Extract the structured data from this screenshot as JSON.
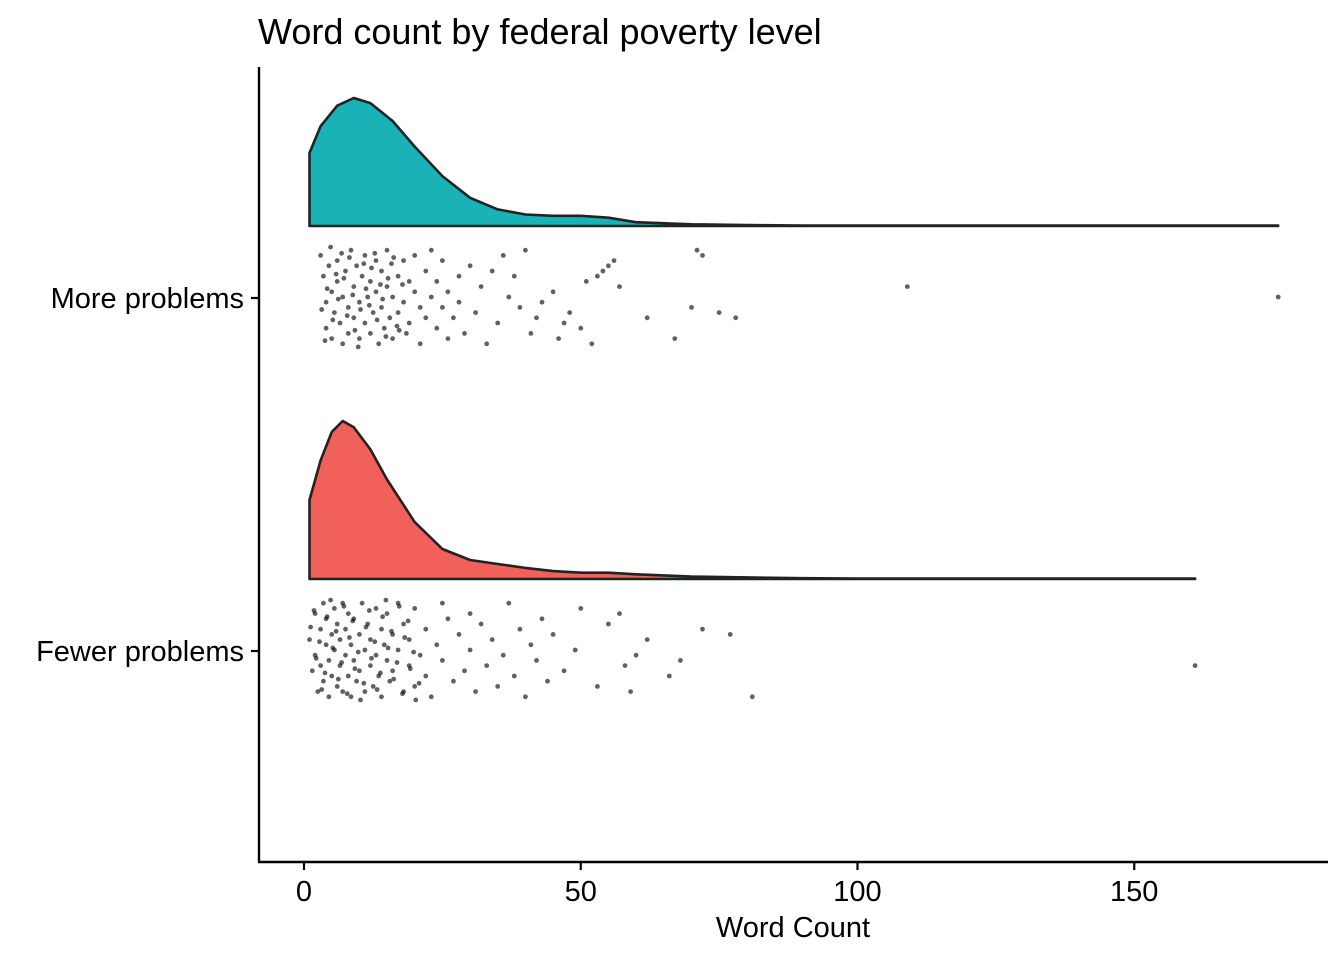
{
  "chart_data": {
    "type": "raincloud",
    "title": "Word count by federal poverty level",
    "xlabel": "Word Count",
    "ylabel": "",
    "xlim": [
      -8,
      184
    ],
    "x_ticks": [
      0,
      50,
      100,
      150
    ],
    "grid": false,
    "legend": "none",
    "categories": [
      "Fewer problems",
      "More problems"
    ],
    "series": [
      {
        "category": "More problems",
        "color": "#19B3B7",
        "density_x": [
          1,
          3,
          6,
          9,
          12,
          16,
          20,
          25,
          30,
          35,
          40,
          45,
          50,
          55,
          60,
          70,
          80,
          90,
          100,
          120,
          140,
          160,
          176
        ],
        "density_y": [
          0.57,
          0.78,
          0.94,
          1.0,
          0.96,
          0.82,
          0.62,
          0.39,
          0.22,
          0.13,
          0.09,
          0.08,
          0.08,
          0.065,
          0.03,
          0.013,
          0.007,
          0.004,
          0.003,
          0.003,
          0.003,
          0.003,
          0.003
        ],
        "max_x": 176,
        "points": [
          [
            3,
            0.1
          ],
          [
            3.5,
            0.3
          ],
          [
            4,
            0.55
          ],
          [
            4,
            0.8
          ],
          [
            4.5,
            0.2
          ],
          [
            5,
            0.45
          ],
          [
            5,
            0.9
          ],
          [
            5.5,
            0.65
          ],
          [
            6,
            0.15
          ],
          [
            6,
            0.35
          ],
          [
            6.5,
            0.75
          ],
          [
            7,
            0.5
          ],
          [
            7,
            0.95
          ],
          [
            7.5,
            0.25
          ],
          [
            8,
            0.6
          ],
          [
            8,
            0.85
          ],
          [
            8.5,
            0.05
          ],
          [
            9,
            0.4
          ],
          [
            9,
            0.7
          ],
          [
            9.5,
            0.2
          ],
          [
            10,
            0.55
          ],
          [
            10,
            0.9
          ],
          [
            10.5,
            0.3
          ],
          [
            11,
            0.75
          ],
          [
            11,
            0.1
          ],
          [
            11.5,
            0.5
          ],
          [
            12,
            0.85
          ],
          [
            12,
            0.35
          ],
          [
            12.5,
            0.65
          ],
          [
            13,
            0.15
          ],
          [
            13,
            0.45
          ],
          [
            13.5,
            0.95
          ],
          [
            14,
            0.6
          ],
          [
            14,
            0.25
          ],
          [
            14.5,
            0.8
          ],
          [
            15,
            0.4
          ],
          [
            15,
            0.05
          ],
          [
            15.5,
            0.7
          ],
          [
            16,
            0.5
          ],
          [
            16,
            0.9
          ],
          [
            17,
            0.3
          ],
          [
            17,
            0.65
          ],
          [
            18,
            0.15
          ],
          [
            18,
            0.55
          ],
          [
            18.5,
            0.85
          ],
          [
            19,
            0.35
          ],
          [
            19,
            0.75
          ],
          [
            20,
            0.45
          ],
          [
            20,
            0.1
          ],
          [
            21,
            0.6
          ],
          [
            21,
            0.95
          ],
          [
            22,
            0.25
          ],
          [
            22,
            0.7
          ],
          [
            23,
            0.5
          ],
          [
            23,
            0.05
          ],
          [
            24,
            0.8
          ],
          [
            24,
            0.35
          ],
          [
            25,
            0.6
          ],
          [
            25,
            0.15
          ],
          [
            26,
            0.45
          ],
          [
            26,
            0.9
          ],
          [
            27,
            0.7
          ],
          [
            28,
            0.3
          ],
          [
            28,
            0.55
          ],
          [
            29,
            0.85
          ],
          [
            30,
            0.2
          ],
          [
            31,
            0.65
          ],
          [
            32,
            0.4
          ],
          [
            33,
            0.95
          ],
          [
            34,
            0.25
          ],
          [
            35,
            0.75
          ],
          [
            36,
            0.1
          ],
          [
            37,
            0.5
          ],
          [
            38,
            0.3
          ],
          [
            39,
            0.6
          ],
          [
            40,
            0.05
          ],
          [
            41,
            0.85
          ],
          [
            42,
            0.7
          ],
          [
            43,
            0.55
          ],
          [
            45,
            0.45
          ],
          [
            46,
            0.9
          ],
          [
            47,
            0.75
          ],
          [
            48,
            0.65
          ],
          [
            50,
            0.8
          ],
          [
            51,
            0.35
          ],
          [
            52,
            0.95
          ],
          [
            53,
            0.3
          ],
          [
            54,
            0.25
          ],
          [
            55,
            0.2
          ],
          [
            56,
            0.15
          ],
          [
            57,
            0.4
          ],
          [
            62,
            0.7
          ],
          [
            67,
            0.9
          ],
          [
            70,
            0.6
          ],
          [
            71,
            0.05
          ],
          [
            72,
            0.1
          ],
          [
            75,
            0.65
          ],
          [
            78,
            0.7
          ],
          [
            109,
            0.4
          ],
          [
            176,
            0.5
          ],
          [
            3.2,
            0.62
          ],
          [
            4.2,
            0.42
          ],
          [
            5.2,
            0.72
          ],
          [
            6.2,
            0.52
          ],
          [
            7.2,
            0.32
          ],
          [
            8.2,
            0.12
          ],
          [
            9.2,
            0.82
          ],
          [
            10.2,
            0.62
          ],
          [
            11.2,
            0.42
          ],
          [
            12.2,
            0.22
          ],
          [
            13.2,
            0.72
          ],
          [
            14.2,
            0.52
          ],
          [
            15.2,
            0.32
          ],
          [
            16.2,
            0.12
          ],
          [
            17.2,
            0.82
          ],
          [
            3.8,
            0.92
          ],
          [
            4.8,
            0.02
          ],
          [
            5.8,
            0.28
          ],
          [
            6.8,
            0.08
          ],
          [
            7.8,
            0.68
          ],
          [
            8.8,
            0.48
          ],
          [
            9.8,
            0.98
          ],
          [
            10.8,
            0.18
          ],
          [
            11.8,
            0.58
          ],
          [
            12.8,
            0.08
          ],
          [
            13.8,
            0.38
          ],
          [
            14.8,
            0.88
          ],
          [
            15.8,
            0.18
          ],
          [
            16.8,
            0.78
          ],
          [
            17.8,
            0.38
          ]
        ]
      },
      {
        "category": "Fewer problems",
        "color": "#F2605B",
        "density_x": [
          1,
          3,
          5,
          7,
          9,
          12,
          15,
          20,
          25,
          30,
          35,
          40,
          45,
          50,
          55,
          60,
          70,
          80,
          90,
          100,
          120,
          140,
          161
        ],
        "density_y": [
          0.5,
          0.75,
          0.93,
          1.0,
          0.96,
          0.82,
          0.63,
          0.36,
          0.19,
          0.12,
          0.095,
          0.07,
          0.05,
          0.04,
          0.04,
          0.03,
          0.015,
          0.01,
          0.005,
          0.003,
          0.003,
          0.003,
          0.003
        ],
        "max_x": 161,
        "points": [
          [
            1,
            0.4
          ],
          [
            1.5,
            0.7
          ],
          [
            2,
            0.15
          ],
          [
            2,
            0.55
          ],
          [
            2.5,
            0.9
          ],
          [
            3,
            0.3
          ],
          [
            3,
            0.65
          ],
          [
            3.5,
            0.05
          ],
          [
            3.5,
            0.8
          ],
          [
            4,
            0.45
          ],
          [
            4,
            0.2
          ],
          [
            4.5,
            0.6
          ],
          [
            4.5,
            0.95
          ],
          [
            5,
            0.35
          ],
          [
            5,
            0.75
          ],
          [
            5.5,
            0.1
          ],
          [
            5.5,
            0.5
          ],
          [
            6,
            0.85
          ],
          [
            6,
            0.25
          ],
          [
            6.5,
            0.65
          ],
          [
            6.5,
            0.4
          ],
          [
            7,
            0.05
          ],
          [
            7,
            0.9
          ],
          [
            7.5,
            0.55
          ],
          [
            7.5,
            0.3
          ],
          [
            8,
            0.75
          ],
          [
            8,
            0.15
          ],
          [
            8.5,
            0.45
          ],
          [
            8.5,
            0.95
          ],
          [
            9,
            0.6
          ],
          [
            9,
            0.2
          ],
          [
            9.5,
            0.8
          ],
          [
            10,
            0.35
          ],
          [
            10,
            0.7
          ],
          [
            10.5,
            0.05
          ],
          [
            11,
            0.5
          ],
          [
            11,
            0.9
          ],
          [
            11.5,
            0.25
          ],
          [
            12,
            0.65
          ],
          [
            12,
            0.4
          ],
          [
            12.5,
            0.85
          ],
          [
            13,
            0.1
          ],
          [
            13,
            0.55
          ],
          [
            13.5,
            0.75
          ],
          [
            14,
            0.3
          ],
          [
            14,
            0.95
          ],
          [
            14.5,
            0.45
          ],
          [
            15,
            0.6
          ],
          [
            15,
            0.15
          ],
          [
            15.5,
            0.8
          ],
          [
            16,
            0.35
          ],
          [
            16,
            0.7
          ],
          [
            17,
            0.05
          ],
          [
            17,
            0.5
          ],
          [
            18,
            0.9
          ],
          [
            18,
            0.25
          ],
          [
            19,
            0.65
          ],
          [
            19,
            0.4
          ],
          [
            20,
            0.85
          ],
          [
            20,
            0.1
          ],
          [
            21,
            0.55
          ],
          [
            22,
            0.75
          ],
          [
            22,
            0.3
          ],
          [
            23,
            0.95
          ],
          [
            24,
            0.45
          ],
          [
            25,
            0.6
          ],
          [
            25,
            0.05
          ],
          [
            26,
            0.2
          ],
          [
            27,
            0.8
          ],
          [
            28,
            0.35
          ],
          [
            29,
            0.7
          ],
          [
            30,
            0.5
          ],
          [
            30,
            0.15
          ],
          [
            31,
            0.9
          ],
          [
            32,
            0.25
          ],
          [
            33,
            0.65
          ],
          [
            34,
            0.4
          ],
          [
            35,
            0.85
          ],
          [
            36,
            0.55
          ],
          [
            37,
            0.05
          ],
          [
            38,
            0.75
          ],
          [
            39,
            0.3
          ],
          [
            40,
            0.95
          ],
          [
            41,
            0.45
          ],
          [
            42,
            0.6
          ],
          [
            43,
            0.2
          ],
          [
            44,
            0.8
          ],
          [
            45,
            0.35
          ],
          [
            47,
            0.7
          ],
          [
            49,
            0.5
          ],
          [
            50,
            0.1
          ],
          [
            53,
            0.85
          ],
          [
            55,
            0.25
          ],
          [
            57,
            0.15
          ],
          [
            58,
            0.65
          ],
          [
            59,
            0.9
          ],
          [
            60,
            0.55
          ],
          [
            62,
            0.4
          ],
          [
            66,
            0.75
          ],
          [
            68,
            0.6
          ],
          [
            72,
            0.3
          ],
          [
            77,
            0.35
          ],
          [
            81,
            0.95
          ],
          [
            161,
            0.65
          ],
          [
            1.2,
            0.28
          ],
          [
            2.2,
            0.58
          ],
          [
            3.2,
            0.88
          ],
          [
            4.2,
            0.18
          ],
          [
            5.2,
            0.48
          ],
          [
            6.2,
            0.78
          ],
          [
            7.2,
            0.08
          ],
          [
            8.2,
            0.38
          ],
          [
            9.2,
            0.68
          ],
          [
            10.2,
            0.98
          ],
          [
            11.2,
            0.28
          ],
          [
            12.2,
            0.58
          ],
          [
            13.2,
            0.88
          ],
          [
            14.2,
            0.18
          ],
          [
            15.2,
            0.48
          ],
          [
            16.2,
            0.78
          ],
          [
            17.2,
            0.08
          ],
          [
            18.2,
            0.38
          ],
          [
            19.2,
            0.68
          ],
          [
            20.2,
            0.98
          ],
          [
            1.8,
            0.12
          ],
          [
            2.8,
            0.42
          ],
          [
            3.8,
            0.72
          ],
          [
            4.8,
            0.02
          ],
          [
            5.8,
            0.32
          ],
          [
            6.8,
            0.62
          ],
          [
            7.8,
            0.92
          ],
          [
            8.8,
            0.22
          ],
          [
            9.8,
            0.52
          ],
          [
            10.8,
            0.82
          ],
          [
            11.8,
            0.12
          ],
          [
            12.8,
            0.42
          ],
          [
            13.8,
            0.72
          ],
          [
            14.8,
            0.02
          ],
          [
            15.8,
            0.32
          ],
          [
            16.8,
            0.62
          ],
          [
            17.8,
            0.92
          ],
          [
            18.8,
            0.22
          ],
          [
            19.8,
            0.52
          ],
          [
            20.8,
            0.82
          ]
        ]
      }
    ]
  }
}
